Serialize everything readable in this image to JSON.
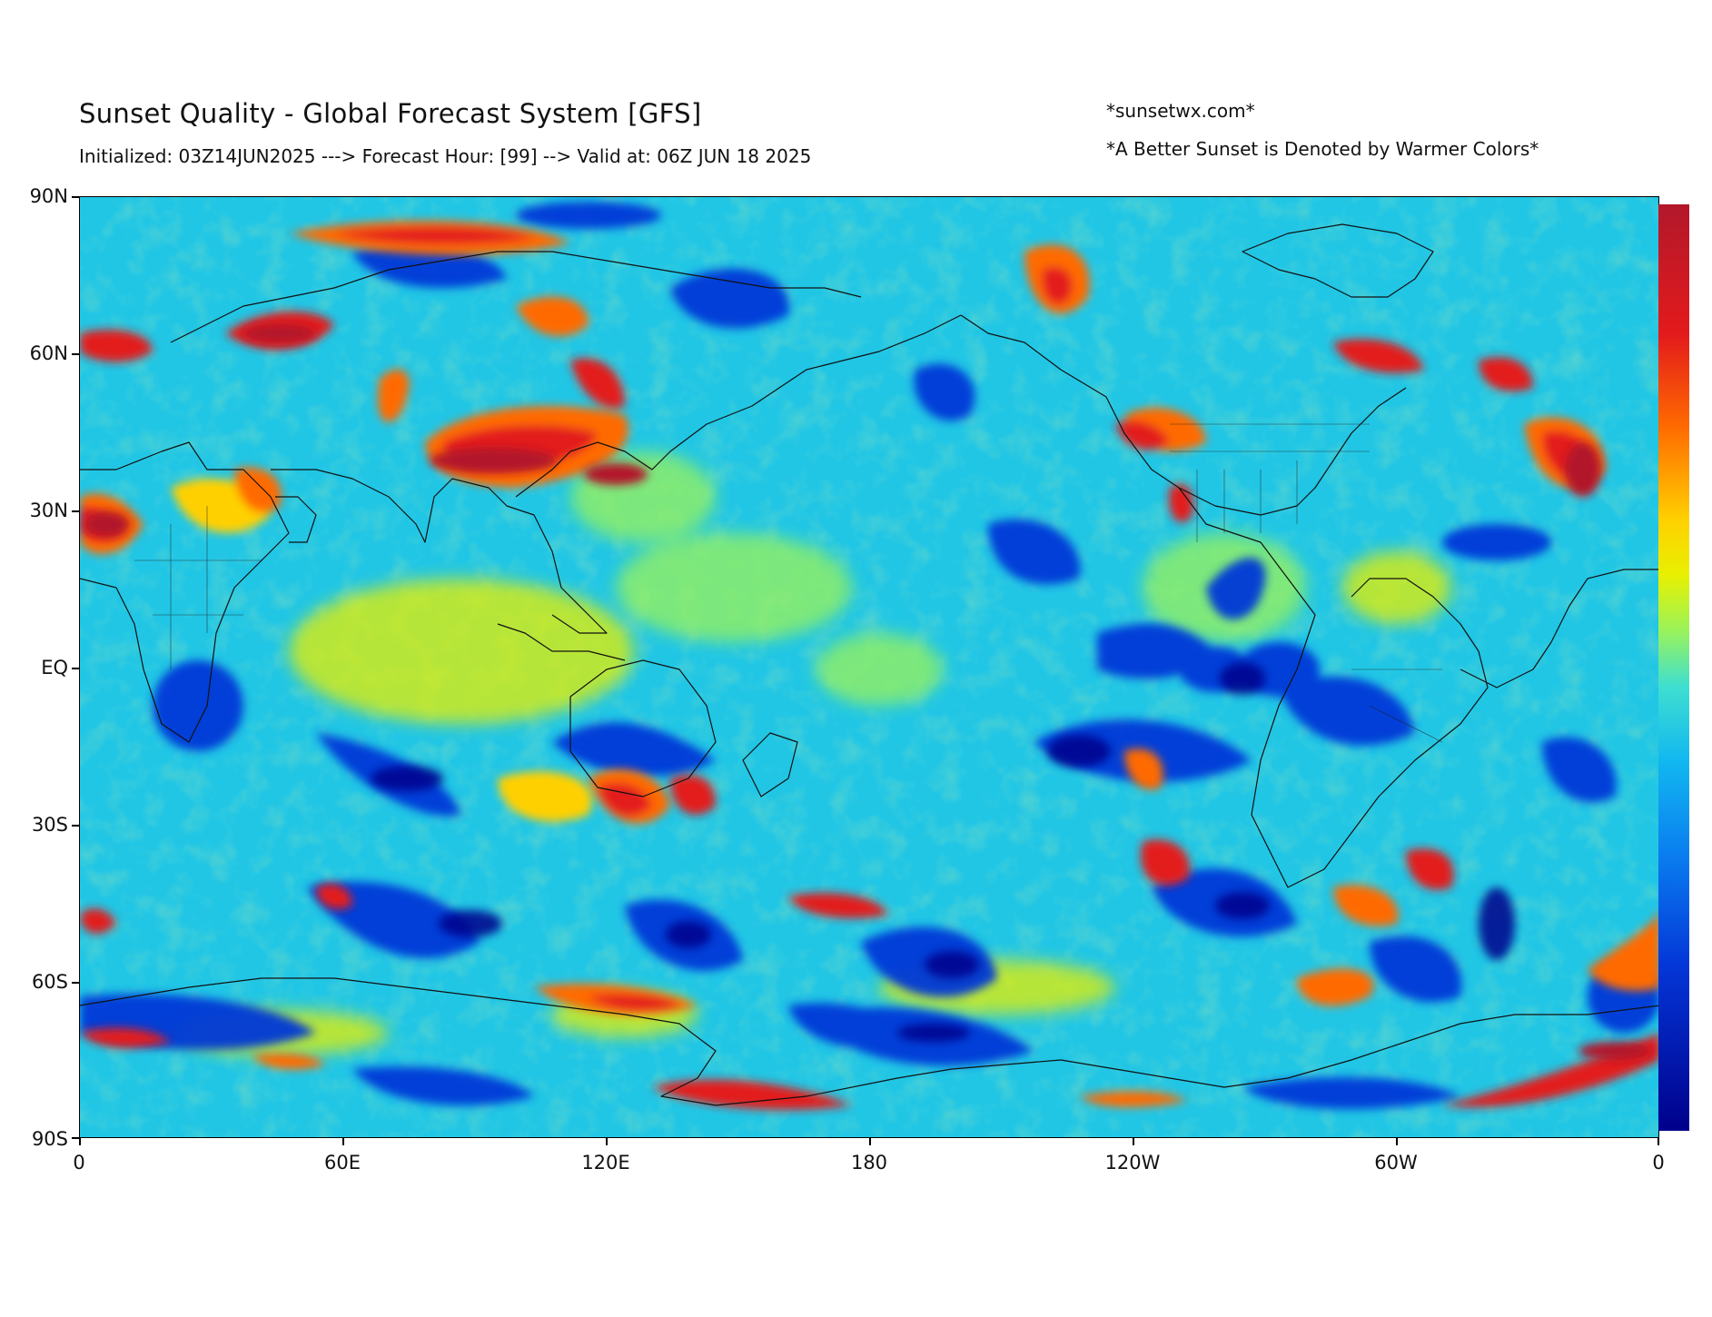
{
  "title": "Sunset Quality - Global Forecast System [GFS]",
  "subtitle": "Initialized: 03Z14JUN2025 ---> Forecast Hour: [99] --> Valid at: 06Z JUN 18 2025",
  "credit": "*sunsetwx.com*",
  "note": "*A Better Sunset is Denoted by Warmer Colors*",
  "axes": {
    "lat_labels": [
      "90N",
      "60N",
      "30N",
      "EQ",
      "30S",
      "60S",
      "90S"
    ],
    "lon_labels": [
      "0",
      "60E",
      "120E",
      "180",
      "120W",
      "60W",
      "0"
    ]
  },
  "colormap": {
    "name": "jet",
    "stops": [
      "#00008b",
      "#0437d8",
      "#0a7ff0",
      "#12b8f0",
      "#3fdfd0",
      "#9af35a",
      "#e8f000",
      "#ffd000",
      "#ff6a00",
      "#e31a1c",
      "#b2182b"
    ]
  }
}
